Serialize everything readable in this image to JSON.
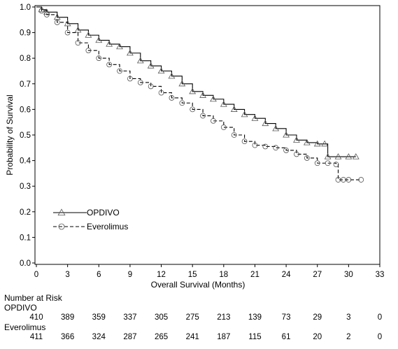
{
  "chart_data": {
    "type": "line",
    "title": "",
    "xlabel": "Overall Survival (Months)",
    "ylabel": "Probability of Survival",
    "xlim": [
      0,
      33
    ],
    "ylim": [
      0,
      1.0
    ],
    "x_ticks": [
      0,
      3,
      6,
      9,
      12,
      15,
      18,
      21,
      24,
      27,
      30,
      33
    ],
    "y_ticks": [
      0.0,
      0.1,
      0.2,
      0.3,
      0.4,
      0.5,
      0.6,
      0.7,
      0.8,
      0.9,
      1.0
    ],
    "x_tick_labels": [
      "0",
      "3",
      "6",
      "9",
      "12",
      "15",
      "18",
      "21",
      "24",
      "27",
      "30",
      "33"
    ],
    "y_tick_labels": [
      "0.0",
      "0.1",
      "0.2",
      "0.3",
      "0.4",
      "0.5",
      "0.6",
      "0.7",
      "0.8",
      "0.9",
      "1.0"
    ],
    "grid": false,
    "legend_position": "bottom-left",
    "series": [
      {
        "name": "OPDIVO",
        "line_style": "solid",
        "marker": "triangle",
        "color": "#000000",
        "x": [
          0,
          0.5,
          1,
          2,
          3,
          4,
          5,
          6,
          7,
          8,
          9,
          10,
          11,
          12,
          13,
          14,
          15,
          16,
          17,
          18,
          19,
          20,
          21,
          22,
          23,
          24,
          25,
          26,
          27,
          27.7,
          28,
          29,
          30,
          30.7
        ],
        "y": [
          1.0,
          0.99,
          0.98,
          0.96,
          0.935,
          0.91,
          0.89,
          0.87,
          0.855,
          0.845,
          0.82,
          0.79,
          0.77,
          0.75,
          0.73,
          0.7,
          0.67,
          0.655,
          0.64,
          0.62,
          0.6,
          0.58,
          0.565,
          0.545,
          0.525,
          0.5,
          0.48,
          0.47,
          0.465,
          0.465,
          0.415,
          0.415,
          0.415,
          0.415
        ]
      },
      {
        "name": "Everolimus",
        "line_style": "dashed",
        "marker": "circle",
        "color": "#000000",
        "x": [
          0,
          0.5,
          1,
          2,
          3,
          4,
          5,
          6,
          7,
          8,
          9,
          10,
          11,
          12,
          13,
          14,
          15,
          16,
          17,
          18,
          19,
          20,
          21,
          22,
          23,
          24,
          25,
          26,
          27,
          28,
          28.8,
          29,
          29.5,
          30,
          31.2
        ],
        "y": [
          1.0,
          0.985,
          0.97,
          0.94,
          0.9,
          0.86,
          0.83,
          0.8,
          0.775,
          0.75,
          0.72,
          0.705,
          0.69,
          0.665,
          0.645,
          0.625,
          0.6,
          0.575,
          0.555,
          0.53,
          0.5,
          0.475,
          0.46,
          0.455,
          0.45,
          0.44,
          0.425,
          0.41,
          0.39,
          0.39,
          0.385,
          0.325,
          0.325,
          0.325,
          0.325
        ]
      }
    ],
    "legend": [
      {
        "label": "OPDIVO",
        "marker": "triangle",
        "line_style": "solid"
      },
      {
        "label": "Everolimus",
        "marker": "circle",
        "line_style": "dashed"
      }
    ]
  },
  "risk_table": {
    "title": "Number at Risk",
    "rows": [
      {
        "label": "OPDIVO",
        "values": [
          "410",
          "389",
          "359",
          "337",
          "305",
          "275",
          "213",
          "139",
          "73",
          "29",
          "3",
          "0"
        ]
      },
      {
        "label": "Everolimus",
        "values": [
          "411",
          "366",
          "324",
          "287",
          "265",
          "241",
          "187",
          "115",
          "61",
          "20",
          "2",
          "0"
        ]
      }
    ]
  }
}
